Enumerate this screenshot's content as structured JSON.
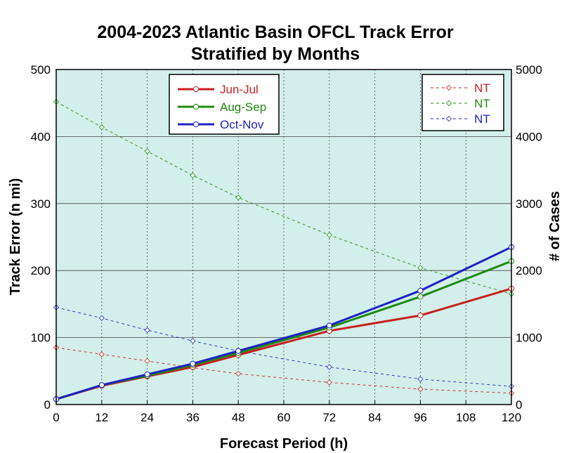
{
  "chart_data": {
    "type": "line",
    "title_line1": "2004-2023 Atlantic Basin OFCL Track Error",
    "title_line2": "Stratified by Months",
    "xlabel": "Forecast Period (h)",
    "ylabel": "Track Error (n mi)",
    "y2label": "# of Cases",
    "x": [
      0,
      12,
      24,
      36,
      48,
      72,
      96,
      120
    ],
    "xticks": [
      "0",
      "12",
      "24",
      "36",
      "48",
      "60",
      "72",
      "84",
      "96",
      "108",
      "120"
    ],
    "xlim": [
      0,
      120
    ],
    "ylim": [
      0,
      500
    ],
    "yticks": [
      "0",
      "100",
      "200",
      "300",
      "400",
      "500"
    ],
    "y2lim": [
      0,
      5000
    ],
    "y2ticks": [
      "0",
      "1000",
      "2000",
      "3000",
      "4000",
      "5000"
    ],
    "grid": true,
    "series": [
      {
        "name": "Jun-Jul",
        "color": "#c8201e",
        "values": [
          8,
          28,
          42,
          56,
          74,
          110,
          133,
          173
        ]
      },
      {
        "name": "Aug-Sep",
        "color": "#1f8a12",
        "values": [
          8,
          29,
          43,
          59,
          77,
          115,
          161,
          214
        ]
      },
      {
        "name": "Oct-Nov",
        "color": "#1c22c4",
        "values": [
          8,
          29,
          45,
          61,
          80,
          118,
          170,
          235
        ]
      }
    ],
    "cases_series": [
      {
        "name": "NT",
        "color": "#c8201e",
        "values": [
          850,
          750,
          650,
          550,
          460,
          330,
          230,
          170
        ]
      },
      {
        "name": "NT",
        "color": "#1f8a12",
        "values": [
          4520,
          4140,
          3780,
          3420,
          3090,
          2530,
          2040,
          1650
        ]
      },
      {
        "name": "NT",
        "color": "#1c22c4",
        "values": [
          1450,
          1290,
          1110,
          950,
          800,
          560,
          380,
          270
        ]
      }
    ],
    "legend_placement": [
      "top-left",
      "top-right"
    ],
    "plot_background": "#d3efeb"
  }
}
